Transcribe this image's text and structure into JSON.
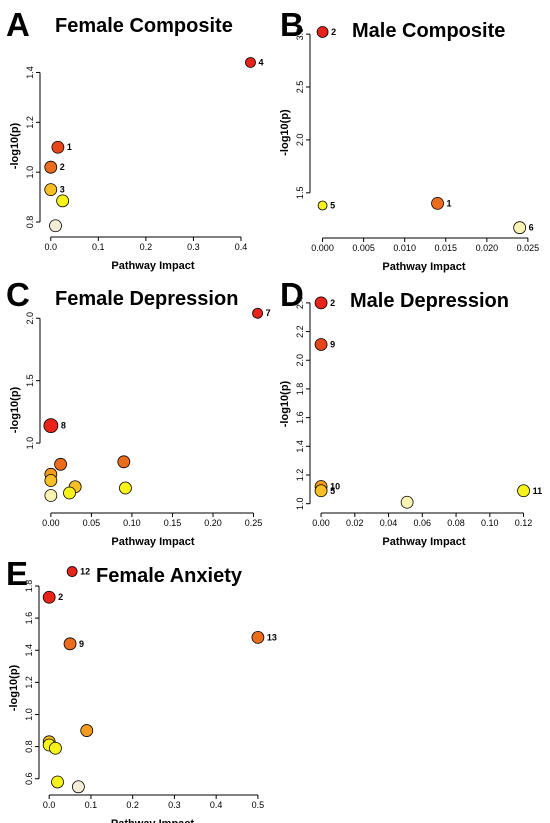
{
  "panel_colors": {
    "red": "#e8231a",
    "red_orange": "#e5461c",
    "orange": "#ec6c1e",
    "orange_light": "#f39b20",
    "amber": "#f7bf25",
    "yellow": "#f7f21a",
    "cream": "#f8f3b3",
    "pale": "#f3ecd6"
  },
  "chart_data": [
    {
      "panel": "A",
      "type": "scatter",
      "title": "Female Composite",
      "xlabel": "Pathway Impact",
      "ylabel": "-log10(p)",
      "xlim": [
        -0.01,
        0.44
      ],
      "ylim": [
        0.76,
        1.45
      ],
      "xticks": [
        "0.0",
        "0.1",
        "0.2",
        "0.3",
        "0.4"
      ],
      "xtick_values": [
        0,
        0.1,
        0.2,
        0.3,
        0.4
      ],
      "yticks": [
        "0.8",
        "1.0",
        "1.2",
        "1.4"
      ],
      "ytick_values": [
        0.8,
        1.0,
        1.2,
        1.4
      ],
      "points": [
        {
          "x": 0.42,
          "y": 1.44,
          "size": 5,
          "color": "red",
          "label": "4"
        },
        {
          "x": 0.015,
          "y": 1.1,
          "size": 6,
          "color": "red_orange",
          "label": "1"
        },
        {
          "x": 0.0,
          "y": 1.02,
          "size": 6,
          "color": "orange",
          "label": "2"
        },
        {
          "x": 0.0,
          "y": 0.93,
          "size": 6,
          "color": "amber",
          "label": "3"
        },
        {
          "x": 0.025,
          "y": 0.885,
          "size": 6,
          "color": "yellow",
          "label": ""
        },
        {
          "x": 0.01,
          "y": 0.785,
          "size": 6,
          "color": "pale",
          "label": ""
        }
      ]
    },
    {
      "panel": "B",
      "type": "scatter",
      "title": "Male Composite",
      "xlabel": "Pathway Impact",
      "ylabel": "-log10(p)",
      "xlim": [
        -0.0008,
        0.0255
      ],
      "ylim": [
        1.12,
        3.02
      ],
      "xticks": [
        "0.000",
        "0.005",
        "0.010",
        "0.015",
        "0.020",
        "0.025"
      ],
      "xtick_values": [
        0,
        0.005,
        0.01,
        0.015,
        0.02,
        0.025
      ],
      "yticks": [
        "1.5",
        "2.0",
        "2.5",
        "3.0"
      ],
      "ytick_values": [
        1.5,
        2.0,
        2.5,
        3.0
      ],
      "points": [
        {
          "x": 0.0,
          "y": 3.02,
          "size": 5.5,
          "color": "red",
          "label": "2"
        },
        {
          "x": 0.0,
          "y": 1.38,
          "size": 4.5,
          "color": "yellow",
          "label": "5"
        },
        {
          "x": 0.014,
          "y": 1.4,
          "size": 6,
          "color": "orange",
          "label": "1"
        },
        {
          "x": 0.024,
          "y": 1.17,
          "size": 6,
          "color": "cream",
          "label": "6"
        }
      ]
    },
    {
      "panel": "C",
      "type": "scatter",
      "title": "Female Depression",
      "xlabel": "Pathway Impact",
      "ylabel": "-log10(p)",
      "xlim": [
        -0.006,
        0.258
      ],
      "ylim": [
        0.48,
        2.05
      ],
      "xticks": [
        "0.00",
        "0.05",
        "0.10",
        "0.15",
        "0.20",
        "0.25"
      ],
      "xtick_values": [
        0,
        0.05,
        0.1,
        0.15,
        0.2,
        0.25
      ],
      "yticks": [
        "1.0",
        "1.5",
        "2.0"
      ],
      "ytick_values": [
        1.0,
        1.5,
        2.0
      ],
      "points": [
        {
          "x": 0.255,
          "y": 2.04,
          "size": 5,
          "color": "red",
          "label": "7"
        },
        {
          "x": 0.0,
          "y": 1.14,
          "size": 7,
          "color": "red",
          "label": "8"
        },
        {
          "x": 0.012,
          "y": 0.83,
          "size": 6,
          "color": "orange",
          "label": ""
        },
        {
          "x": 0.0,
          "y": 0.75,
          "size": 6,
          "color": "orange_light",
          "label": ""
        },
        {
          "x": 0.0,
          "y": 0.7,
          "size": 6,
          "color": "amber",
          "label": ""
        },
        {
          "x": 0.09,
          "y": 0.85,
          "size": 6,
          "color": "orange",
          "label": ""
        },
        {
          "x": 0.03,
          "y": 0.65,
          "size": 6,
          "color": "amber",
          "label": ""
        },
        {
          "x": 0.023,
          "y": 0.6,
          "size": 6,
          "color": "yellow",
          "label": ""
        },
        {
          "x": 0.092,
          "y": 0.64,
          "size": 6,
          "color": "yellow",
          "label": ""
        },
        {
          "x": 0.0,
          "y": 0.58,
          "size": 6,
          "color": "cream",
          "label": ""
        }
      ]
    },
    {
      "panel": "D",
      "type": "scatter",
      "title": "Male Depression",
      "xlabel": "Pathway Impact",
      "ylabel": "-log10(p)",
      "xlim": [
        -0.003,
        0.125
      ],
      "ylim": [
        0.97,
        2.42
      ],
      "xticks": [
        "0.00",
        "0.02",
        "0.04",
        "0.06",
        "0.08",
        "0.10",
        "0.12"
      ],
      "xtick_values": [
        0,
        0.02,
        0.04,
        0.06,
        0.08,
        0.1,
        0.12
      ],
      "yticks": [
        "1.0",
        "1.2",
        "1.4",
        "1.6",
        "1.8",
        "2.0",
        "2.2",
        "2.4"
      ],
      "ytick_values": [
        1.0,
        1.2,
        1.4,
        1.6,
        1.8,
        2.0,
        2.2,
        2.4
      ],
      "points": [
        {
          "x": 0.0,
          "y": 2.4,
          "size": 6,
          "color": "red",
          "label": "2"
        },
        {
          "x": 0.0,
          "y": 2.11,
          "size": 6,
          "color": "red_orange",
          "label": "9"
        },
        {
          "x": 0.0,
          "y": 1.12,
          "size": 6,
          "color": "orange_light",
          "label": "10"
        },
        {
          "x": 0.0,
          "y": 1.09,
          "size": 6,
          "color": "amber",
          "label": "5"
        },
        {
          "x": 0.051,
          "y": 1.01,
          "size": 6,
          "color": "cream",
          "label": ""
        },
        {
          "x": 0.12,
          "y": 1.09,
          "size": 6,
          "color": "yellow",
          "label": "11"
        }
      ]
    },
    {
      "panel": "E",
      "type": "scatter",
      "title": "Female Anxiety",
      "xlabel": "Pathway Impact",
      "ylabel": "-log10(p)",
      "xlim": [
        -0.01,
        0.505
      ],
      "ylim": [
        0.53,
        1.8
      ],
      "xticks": [
        "0.0",
        "0.1",
        "0.2",
        "0.3",
        "0.4",
        "0.5"
      ],
      "xtick_values": [
        0,
        0.1,
        0.2,
        0.3,
        0.4,
        0.5
      ],
      "yticks": [
        "0.6",
        "0.8",
        "1.0",
        "1.2",
        "1.4",
        "1.6",
        "1.8"
      ],
      "ytick_values": [
        0.6,
        0.8,
        1.0,
        1.2,
        1.4,
        1.6,
        1.8
      ],
      "points": [
        {
          "x": 0.055,
          "y": 1.89,
          "size": 5,
          "color": "red",
          "label": "12"
        },
        {
          "x": 0.0,
          "y": 1.73,
          "size": 6,
          "color": "red",
          "label": "2"
        },
        {
          "x": 0.05,
          "y": 1.44,
          "size": 6,
          "color": "orange",
          "label": "9"
        },
        {
          "x": 0.5,
          "y": 1.48,
          "size": 6,
          "color": "orange",
          "label": "13"
        },
        {
          "x": 0.09,
          "y": 0.9,
          "size": 6,
          "color": "orange_light",
          "label": ""
        },
        {
          "x": 0.0,
          "y": 0.83,
          "size": 6,
          "color": "amber",
          "label": ""
        },
        {
          "x": 0.0,
          "y": 0.81,
          "size": 6,
          "color": "yellow",
          "label": ""
        },
        {
          "x": 0.015,
          "y": 0.79,
          "size": 6,
          "color": "yellow",
          "label": ""
        },
        {
          "x": 0.02,
          "y": 0.58,
          "size": 6,
          "color": "yellow",
          "label": ""
        },
        {
          "x": 0.07,
          "y": 0.55,
          "size": 6,
          "color": "pale",
          "label": ""
        }
      ]
    }
  ]
}
